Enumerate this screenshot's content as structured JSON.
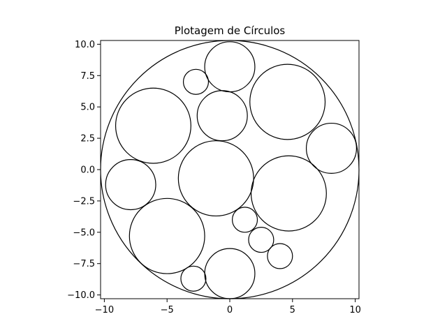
{
  "chart_data": {
    "type": "scatter",
    "title": "Plotagem de Círculos",
    "xlabel": "",
    "ylabel": "",
    "xlim": [
      -10.3,
      10.3
    ],
    "ylim": [
      -10.3,
      10.3
    ],
    "grid": false,
    "aspect": "equal",
    "xticks": [
      -10,
      -5,
      0,
      5,
      10
    ],
    "xtick_labels": [
      "−10",
      "−5",
      "0",
      "5",
      "10"
    ],
    "yticks": [
      10,
      7.5,
      5,
      2.5,
      0,
      -2.5,
      -5,
      -7.5,
      -10
    ],
    "ytick_labels": [
      "10.0",
      "7.5",
      "5.0",
      "2.5",
      "0.0",
      "−2.5",
      "−5.0",
      "−7.5",
      "−10.0"
    ],
    "circles": [
      {
        "x": 0.0,
        "y": 0.0,
        "r": 10.3
      },
      {
        "x": 0.0,
        "y": 8.2,
        "r": 2.0
      },
      {
        "x": -2.7,
        "y": 7.0,
        "r": 1.0
      },
      {
        "x": 4.6,
        "y": 5.4,
        "r": 3.0
      },
      {
        "x": -6.1,
        "y": 3.5,
        "r": 3.0
      },
      {
        "x": -0.6,
        "y": 4.3,
        "r": 2.0
      },
      {
        "x": 8.1,
        "y": 1.7,
        "r": 2.0
      },
      {
        "x": -1.1,
        "y": -0.7,
        "r": 3.0
      },
      {
        "x": -7.9,
        "y": -1.2,
        "r": 2.0
      },
      {
        "x": 4.7,
        "y": -1.9,
        "r": 3.0
      },
      {
        "x": -5.0,
        "y": -5.3,
        "r": 3.0
      },
      {
        "x": 1.2,
        "y": -4.0,
        "r": 1.0
      },
      {
        "x": 2.5,
        "y": -5.6,
        "r": 1.0
      },
      {
        "x": 4.0,
        "y": -6.9,
        "r": 1.0
      },
      {
        "x": -2.9,
        "y": -8.7,
        "r": 1.0
      },
      {
        "x": 0.0,
        "y": -8.3,
        "r": 2.0
      }
    ]
  }
}
